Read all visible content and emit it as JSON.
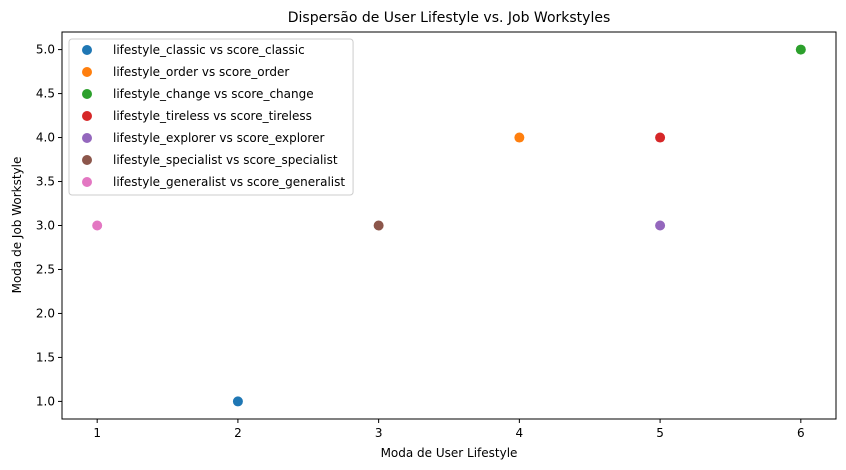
{
  "chart_data": {
    "type": "scatter",
    "title": "Dispersão de User Lifestyle vs. Job Workstyles",
    "xlabel": "Moda de User Lifestyle",
    "ylabel": "Moda de Job Workstyle",
    "xlim": [
      0.75,
      6.25
    ],
    "ylim": [
      0.8,
      5.2
    ],
    "xticks": [
      "1",
      "2",
      "3",
      "4",
      "5",
      "6"
    ],
    "yticks": [
      "1.0",
      "1.5",
      "2.0",
      "2.5",
      "3.0",
      "3.5",
      "4.0",
      "4.5",
      "5.0"
    ],
    "grid": false,
    "legend_position": "top-left",
    "series": [
      {
        "name": "lifestyle_classic vs score_classic",
        "color": "#1f77b4",
        "points": [
          [
            2,
            1.0
          ]
        ]
      },
      {
        "name": "lifestyle_order vs score_order",
        "color": "#ff7f0e",
        "points": [
          [
            4,
            4.0
          ]
        ]
      },
      {
        "name": "lifestyle_change vs score_change",
        "color": "#2ca02c",
        "points": [
          [
            6,
            5.0
          ]
        ]
      },
      {
        "name": "lifestyle_tireless vs score_tireless",
        "color": "#d62728",
        "points": [
          [
            5,
            4.0
          ]
        ]
      },
      {
        "name": "lifestyle_explorer vs score_explorer",
        "color": "#9467bd",
        "points": [
          [
            5,
            3.0
          ]
        ]
      },
      {
        "name": "lifestyle_specialist vs score_specialist",
        "color": "#8c564b",
        "points": [
          [
            3,
            3.0
          ]
        ]
      },
      {
        "name": "lifestyle_generalist vs score_generalist",
        "color": "#e377c2",
        "points": [
          [
            1,
            3.0
          ]
        ]
      }
    ]
  }
}
